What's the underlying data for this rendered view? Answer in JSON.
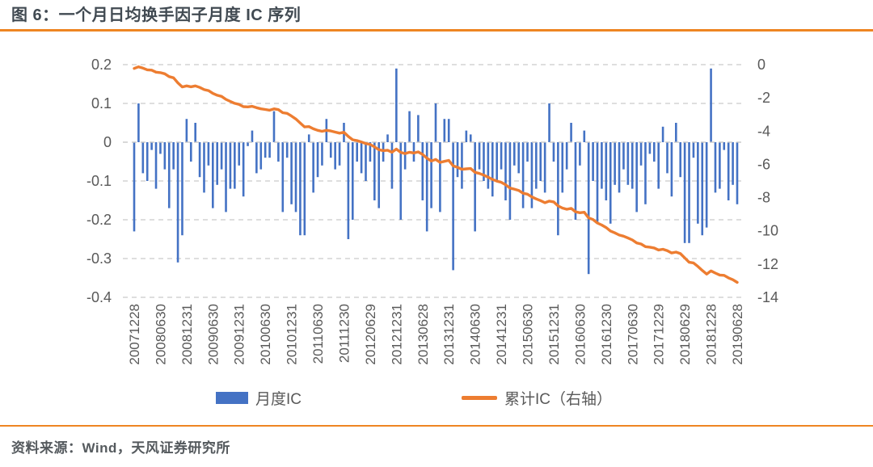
{
  "figure": {
    "title": "图 6：一个月日均换手因子月度 IC 序列",
    "source": "资料来源：Wind，天风证券研究所"
  },
  "legend": {
    "bar_label": "月度IC",
    "line_label": "累计IC（右轴）"
  },
  "colors": {
    "bar_blue": "#4472c4",
    "line_orange": "#ed7d31",
    "rule_orange": "#ee8522",
    "axis_text": "#595959",
    "grid_gray": "#c9c9c9",
    "title_text": "#414a52"
  },
  "chart_data": {
    "type": "bar",
    "subtype": "combo-bar-line",
    "title": "一个月日均换手因子月度 IC 序列",
    "grid": "dashed-horizontal",
    "legend_position": "bottom",
    "x_tick_interval_months": 6,
    "x_tick_labels": [
      "20071228",
      "20080630",
      "20081231",
      "20090630",
      "20091231",
      "20100630",
      "20101231",
      "20110630",
      "20111230",
      "20120629",
      "20121231",
      "20130628",
      "20131231",
      "20140630",
      "20141231",
      "20150630",
      "20151231",
      "20160630",
      "20161230",
      "20170630",
      "20171229",
      "20180629",
      "20181228",
      "20190628"
    ],
    "left_axis": {
      "ticks": [
        "0.2",
        "0.1",
        "0",
        "-0.1",
        "-0.2",
        "-0.3",
        "-0.4"
      ],
      "range": [
        -0.4,
        0.2
      ]
    },
    "right_axis": {
      "ticks": [
        "0",
        "-2",
        "-4",
        "-6",
        "-8",
        "-10",
        "-12",
        "-14"
      ],
      "range": [
        -14,
        0
      ]
    },
    "series": [
      {
        "name": "月度IC",
        "type": "bar",
        "axis": "left",
        "values": [
          -0.23,
          0.1,
          -0.08,
          -0.1,
          -0.02,
          -0.12,
          -0.03,
          -0.07,
          -0.17,
          -0.07,
          -0.31,
          -0.24,
          0.06,
          -0.05,
          0.05,
          -0.09,
          -0.13,
          -0.06,
          -0.17,
          -0.11,
          -0.07,
          -0.18,
          -0.12,
          -0.12,
          -0.06,
          -0.14,
          -0.01,
          0.03,
          -0.08,
          -0.07,
          -0.04,
          -0.04,
          0.08,
          -0.05,
          -0.18,
          -0.04,
          -0.16,
          -0.18,
          -0.24,
          -0.24,
          0.02,
          -0.13,
          -0.09,
          -0.06,
          0.06,
          -0.04,
          -0.07,
          -0.06,
          0.05,
          -0.25,
          -0.2,
          -0.05,
          -0.08,
          -0.1,
          -0.05,
          -0.15,
          -0.17,
          -0.05,
          0.02,
          -0.12,
          0.19,
          -0.2,
          -0.07,
          0.08,
          -0.05,
          0.07,
          -0.15,
          -0.23,
          -0.17,
          0.1,
          -0.18,
          0.06,
          0.06,
          -0.33,
          -0.09,
          -0.12,
          0.03,
          0.02,
          -0.23,
          -0.07,
          -0.1,
          -0.12,
          -0.14,
          -0.1,
          -0.07,
          -0.15,
          -0.2,
          -0.06,
          -0.08,
          -0.17,
          -0.05,
          -0.17,
          -0.12,
          -0.1,
          -0.13,
          0.1,
          -0.05,
          -0.24,
          -0.13,
          -0.07,
          0.05,
          -0.2,
          -0.06,
          0.03,
          -0.34,
          -0.1,
          -0.21,
          -0.12,
          -0.15,
          -0.21,
          -0.11,
          -0.13,
          -0.07,
          -0.11,
          -0.12,
          -0.18,
          -0.06,
          -0.16,
          -0.03,
          -0.05,
          -0.12,
          0.04,
          -0.08,
          -0.14,
          0.05,
          -0.09,
          -0.26,
          -0.26,
          -0.04,
          -0.21,
          -0.24,
          -0.22,
          0.19,
          -0.13,
          -0.12,
          -0.02,
          -0.15,
          -0.11,
          -0.16
        ]
      },
      {
        "name": "累计IC（右轴）",
        "type": "line",
        "axis": "right",
        "values": [
          -0.23,
          -0.13,
          -0.21,
          -0.31,
          -0.33,
          -0.45,
          -0.48,
          -0.55,
          -0.72,
          -0.79,
          -1.1,
          -1.34,
          -1.28,
          -1.33,
          -1.28,
          -1.37,
          -1.5,
          -1.56,
          -1.73,
          -1.84,
          -1.91,
          -2.09,
          -2.21,
          -2.33,
          -2.39,
          -2.53,
          -2.54,
          -2.51,
          -2.59,
          -2.66,
          -2.7,
          -2.74,
          -2.66,
          -2.71,
          -2.89,
          -2.93,
          -3.09,
          -3.27,
          -3.51,
          -3.75,
          -3.73,
          -3.86,
          -3.95,
          -4.01,
          -3.95,
          -3.99,
          -4.06,
          -4.12,
          -4.07,
          -4.32,
          -4.52,
          -4.57,
          -4.65,
          -4.75,
          -4.8,
          -4.95,
          -5.12,
          -5.17,
          -5.15,
          -5.27,
          -5.08,
          -5.28,
          -5.35,
          -5.27,
          -5.32,
          -5.25,
          -5.4,
          -5.63,
          -5.8,
          -5.7,
          -5.88,
          -5.82,
          -5.76,
          -6.09,
          -6.18,
          -6.3,
          -6.27,
          -6.25,
          -6.48,
          -6.55,
          -6.65,
          -6.77,
          -6.91,
          -7.01,
          -7.08,
          -7.23,
          -7.43,
          -7.49,
          -7.57,
          -7.74,
          -7.79,
          -7.96,
          -8.08,
          -8.18,
          -8.31,
          -8.21,
          -8.26,
          -8.5,
          -8.63,
          -8.7,
          -8.65,
          -8.85,
          -8.91,
          -8.88,
          -9.22,
          -9.32,
          -9.53,
          -9.65,
          -9.8,
          -10.01,
          -10.12,
          -10.25,
          -10.32,
          -10.43,
          -10.55,
          -10.73,
          -10.79,
          -10.95,
          -10.98,
          -11.03,
          -11.15,
          -11.11,
          -11.19,
          -11.33,
          -11.28,
          -11.37,
          -11.63,
          -11.89,
          -11.93,
          -12.14,
          -12.38,
          -12.6,
          -12.41,
          -12.54,
          -12.66,
          -12.68,
          -12.83,
          -12.94,
          -13.1
        ]
      }
    ]
  }
}
